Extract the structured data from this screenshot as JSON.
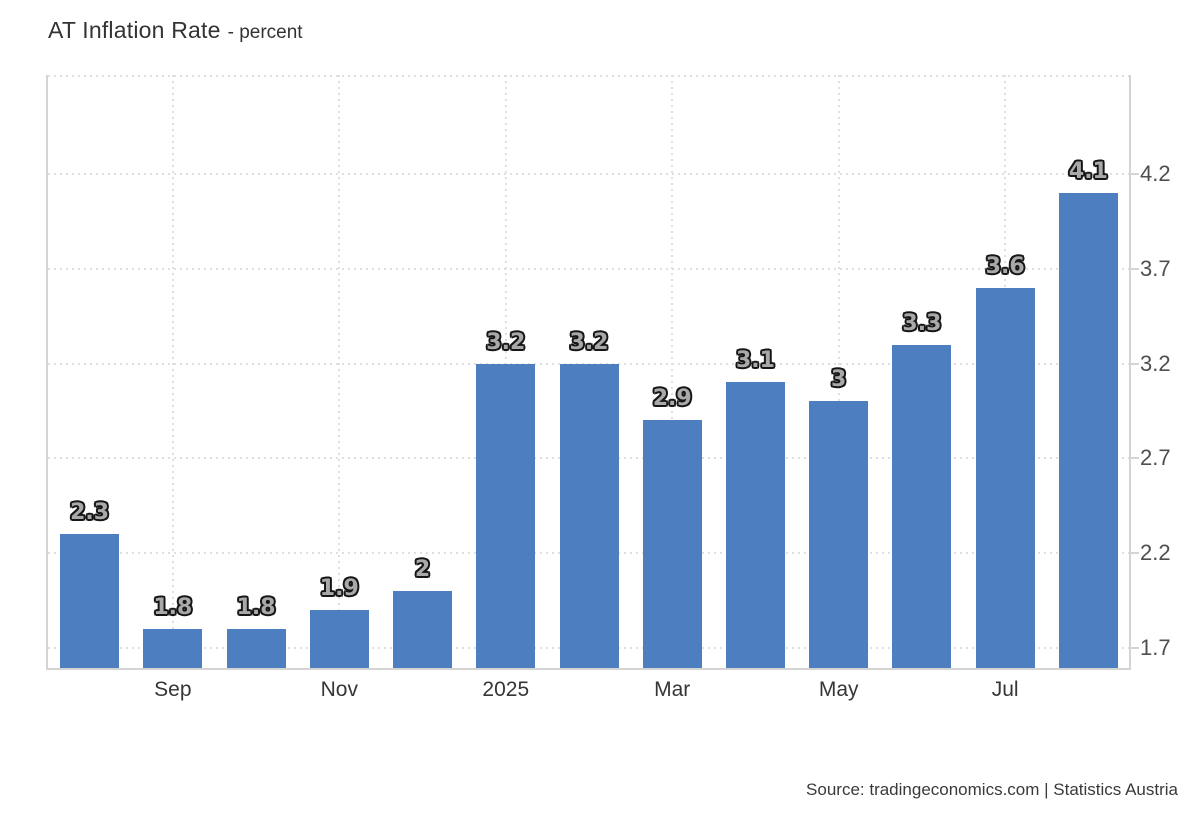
{
  "title": {
    "main": "AT Inflation Rate",
    "sub": "- percent"
  },
  "source": "Source: tradingeconomics.com | Statistics Austria",
  "colors": {
    "bar": "#4d7ebf",
    "grid": "#dfdfdf",
    "axis": "#d4d4d4",
    "title": "#333333",
    "y_label": "#4f4f4f",
    "x_label": "#363636",
    "value_label_fill": "#a9a9a9",
    "value_label_outline": "#161616",
    "source_text": "#3a3a3a"
  },
  "chart_data": {
    "type": "bar",
    "title": "AT Inflation Rate",
    "subtitle": "- percent",
    "unit": "percent",
    "values": [
      2.3,
      1.8,
      1.8,
      1.9,
      2,
      3.2,
      3.2,
      2.9,
      3.1,
      3,
      3.3,
      3.6,
      4.1
    ],
    "value_labels": [
      "2.3",
      "1.8",
      "1.8",
      "1.9",
      "2",
      "3.2",
      "3.2",
      "2.9",
      "3.1",
      "3",
      "3.3",
      "3.6",
      "4.1"
    ],
    "x_ticks": [
      {
        "index": 1,
        "label": "Sep"
      },
      {
        "index": 3,
        "label": "Nov"
      },
      {
        "index": 5,
        "label": "2025"
      },
      {
        "index": 7,
        "label": "Mar"
      },
      {
        "index": 9,
        "label": "May"
      },
      {
        "index": 11,
        "label": "Jul"
      }
    ],
    "y_ticks": [
      {
        "value": 4.2,
        "label": "4.2"
      },
      {
        "value": 3.7,
        "label": "3.7"
      },
      {
        "value": 3.2,
        "label": "3.2"
      },
      {
        "value": 2.7,
        "label": "2.7"
      },
      {
        "value": 2.2,
        "label": "2.2"
      },
      {
        "value": 1.7,
        "label": "1.7"
      }
    ],
    "ylim": [
      1.594,
      4.722
    ],
    "grid_style": "dotted",
    "legend": "none",
    "y_axis_side": "right"
  }
}
